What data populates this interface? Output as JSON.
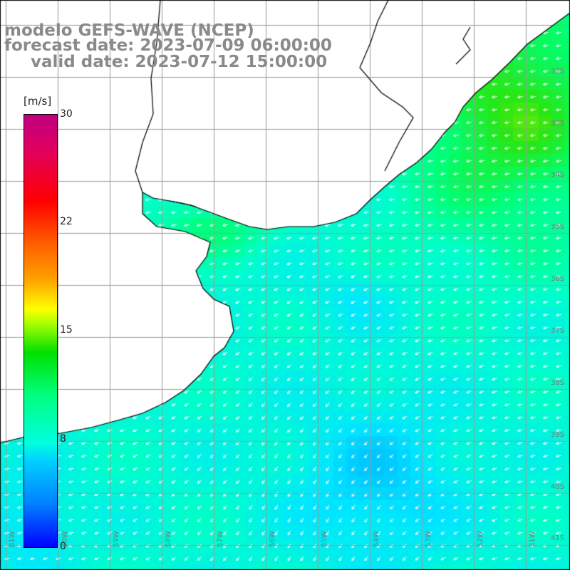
{
  "title": {
    "line1": "modelo GEFS-WAVE (NCEP)",
    "line2": "forecast date: 2023-07-09 06:00:00",
    "line3": "valid date: 2023-07-12 15:00:00"
  },
  "colorbar": {
    "unit": "[m/s]",
    "ticks": [
      "30",
      "22",
      "15",
      "8",
      "0"
    ],
    "tick_values": [
      30,
      22,
      15,
      8,
      0
    ],
    "colors": {
      "low": "#0000ff",
      "cyan": "#00ffe0",
      "green": "#00e000",
      "yellow": "#ffff00",
      "red": "#ff0000",
      "high": "#c00080"
    }
  },
  "latitude_labels": [
    "32S",
    "33S",
    "34S",
    "35S",
    "36S",
    "37S",
    "38S",
    "39S",
    "40S",
    "41S"
  ],
  "longitude_labels": [
    "61W",
    "60W",
    "59W",
    "58W",
    "57W",
    "56W",
    "55W",
    "54W",
    "53W",
    "52W",
    "51W"
  ],
  "colors": {
    "land": "#ffffff",
    "coast": "#000000",
    "grid": "#9a9a9a",
    "arrow": "#ffffff"
  }
}
